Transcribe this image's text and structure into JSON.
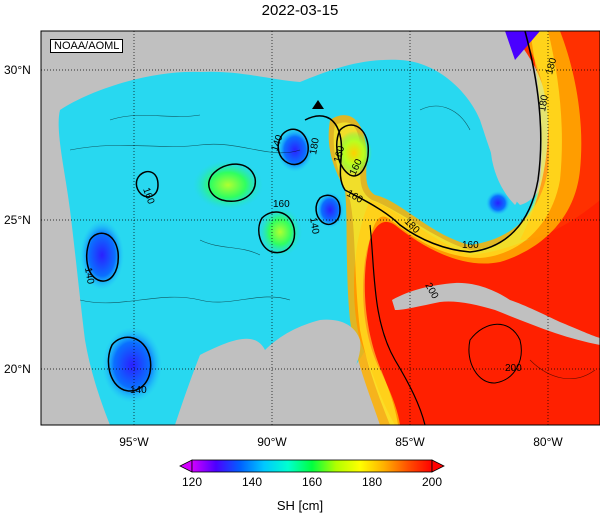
{
  "title": "2022-03-15",
  "credit": "NOAA/AOML",
  "lat_labels": [
    "30°N",
    "25°N",
    "20°N"
  ],
  "lon_labels": [
    "95°W",
    "90°W",
    "85°W",
    "80°W"
  ],
  "contour_labels": [
    "140",
    "140",
    "140",
    "140",
    "160",
    "160",
    "160",
    "160",
    "160",
    "160",
    "180",
    "180",
    "180",
    "180",
    "200",
    "200"
  ],
  "colorbar": {
    "label": "SH [cm]",
    "ticks": [
      "120",
      "140",
      "160",
      "180",
      "200"
    ],
    "colors": [
      "#d200ff",
      "#4b00ff",
      "#0060ff",
      "#00c8ff",
      "#00ffd0",
      "#00ff40",
      "#b0ff00",
      "#ffff00",
      "#ffb000",
      "#ff5000",
      "#ff0000"
    ]
  },
  "colors": {
    "land": "#c0c0c0",
    "gulf_base": "#28d8f0",
    "loop_current": "#ff2000"
  }
}
